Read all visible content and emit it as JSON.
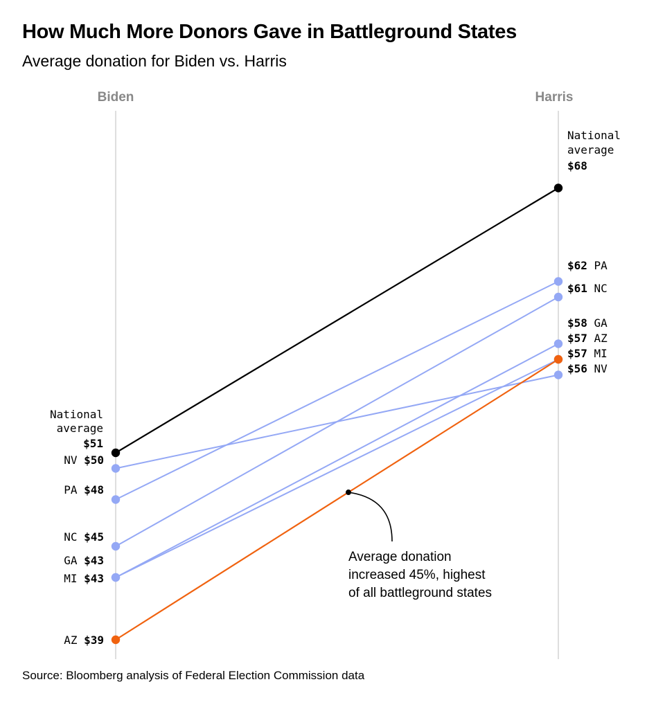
{
  "title": "How Much More Donors Gave in Battleground States",
  "subtitle": "Average donation for Biden vs. Harris",
  "source": "Source: Bloomberg analysis of Federal Election Commission data",
  "colors": {
    "national": "#000000",
    "state": "#94a8f5",
    "highlight": "#f0620f",
    "axis": "#d4d4d4",
    "column_label": "#888888"
  },
  "chart_data": {
    "type": "slope",
    "categories": [
      "Biden",
      "Harris"
    ],
    "series": [
      {
        "name": "National average",
        "values": [
          51,
          68
        ],
        "style": "national"
      },
      {
        "name": "NV",
        "values": [
          50,
          56
        ],
        "style": "state"
      },
      {
        "name": "PA",
        "values": [
          48,
          62
        ],
        "style": "state"
      },
      {
        "name": "NC",
        "values": [
          45,
          61
        ],
        "style": "state"
      },
      {
        "name": "GA",
        "values": [
          43,
          58
        ],
        "style": "state"
      },
      {
        "name": "MI",
        "values": [
          43,
          57
        ],
        "style": "state"
      },
      {
        "name": "AZ",
        "values": [
          39,
          57
        ],
        "style": "highlight"
      }
    ],
    "left_labels": [
      {
        "series": "National average",
        "lines": [
          "National",
          "average"
        ],
        "value": "$51"
      },
      {
        "series": "NV",
        "name": "NV",
        "value": "$50"
      },
      {
        "series": "PA",
        "name": "PA",
        "value": "$48"
      },
      {
        "series": "NC",
        "name": "NC",
        "value": "$45"
      },
      {
        "series": "GA",
        "name": "GA",
        "value": "$43"
      },
      {
        "series": "MI",
        "name": "MI",
        "value": "$43"
      },
      {
        "series": "AZ",
        "name": "AZ",
        "value": "$39"
      }
    ],
    "right_labels": [
      {
        "series": "National average",
        "lines": [
          "National",
          "average"
        ],
        "value": "$68"
      },
      {
        "series": "PA",
        "name": "PA",
        "value": "$62"
      },
      {
        "series": "NC",
        "name": "NC",
        "value": "$61"
      },
      {
        "series": "GA",
        "name": "GA",
        "value": "$58"
      },
      {
        "series": "AZ",
        "name": "AZ",
        "value": "$57"
      },
      {
        "series": "MI",
        "name": "MI",
        "value": "$57"
      },
      {
        "series": "NV",
        "name": "NV",
        "value": "$56"
      }
    ],
    "annotation": {
      "series": "AZ",
      "lines": [
        "Average donation",
        "increased 45%, highest",
        "of all battleground states"
      ]
    }
  }
}
